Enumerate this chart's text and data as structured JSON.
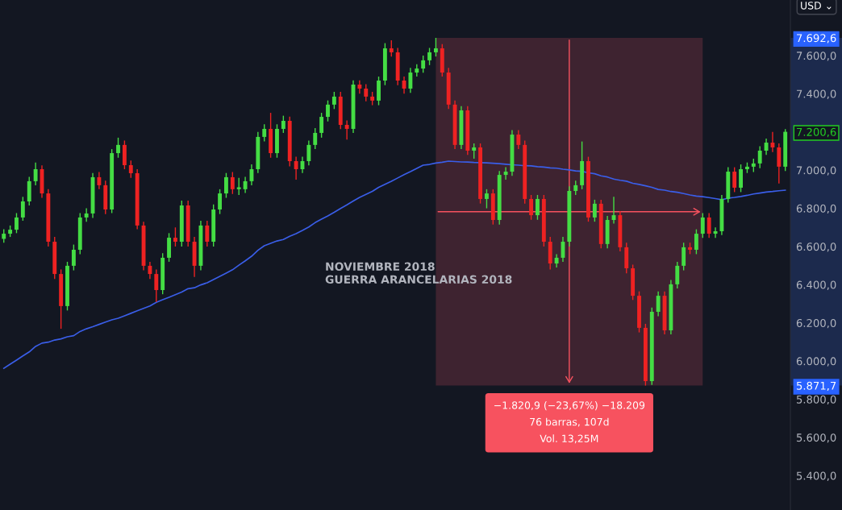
{
  "chart_data": {
    "type": "candlestick",
    "annotations": [
      "NOVIEMBRE 2018",
      "GUERRA ARANCELARIAS 2018",
      "−1.820,9 (−23,67%) −18.209",
      "76 barras, 107d",
      "Vol. 13,25M",
      "USD ⌄"
    ],
    "categories": [
      null,
      null,
      null,
      null,
      null,
      null,
      null,
      null,
      null,
      null,
      null,
      null,
      null,
      null,
      null,
      null,
      null,
      null,
      null,
      null,
      null,
      null,
      null,
      null,
      null,
      null,
      null,
      null,
      null,
      null,
      null,
      null,
      null,
      null,
      null,
      null,
      null,
      null,
      null,
      null,
      null,
      null,
      null,
      null,
      null,
      null,
      null,
      null,
      null,
      null,
      null,
      null,
      null,
      null,
      null,
      null,
      null,
      null,
      null,
      null,
      null,
      null,
      null,
      null,
      null,
      null,
      null,
      null,
      null,
      null,
      null,
      null,
      null,
      null,
      null,
      null,
      null,
      null,
      null,
      null,
      null,
      null,
      null,
      null,
      null,
      null,
      null,
      null,
      null,
      null,
      null,
      null,
      null,
      null,
      null,
      null,
      null,
      null,
      null,
      null,
      null,
      null,
      null,
      null,
      null,
      null,
      null,
      null,
      null,
      null,
      null,
      null,
      null,
      null,
      null,
      null,
      null,
      null,
      null,
      null,
      null,
      null,
      null,
      null
    ],
    "ylim": [
      5220,
      7891
    ],
    "yticks": [
      {
        "value": 5400,
        "label": "5.400,0"
      },
      {
        "value": 5600,
        "label": "5.600,0"
      },
      {
        "value": 5800,
        "label": "5.800,0"
      },
      {
        "value": 5871.7,
        "label": "5.871,7"
      },
      {
        "value": 6000,
        "label": "6.000,0"
      },
      {
        "value": 6200,
        "label": "6.200,0"
      },
      {
        "value": 6400,
        "label": "6.400,0"
      },
      {
        "value": 6600,
        "label": "6.600,0"
      },
      {
        "value": 6800,
        "label": "6.800,0"
      },
      {
        "value": 7000,
        "label": "7.000,0"
      },
      {
        "value": 7200.6,
        "label": "7.200,6"
      },
      {
        "value": 7400,
        "label": "7.400,0"
      },
      {
        "value": 7600,
        "label": "7.600,0"
      },
      {
        "value": 7692.6,
        "label": "7.692,6"
      }
    ],
    "tick_labels": "y",
    "series": [
      {
        "colors": [
          "#44dd44",
          "#44dd44",
          "#44dd44",
          "#44dd44",
          "#44dd44",
          "#44dd44",
          "#ee2222",
          "#ee2222",
          "#ee2222",
          "#ee2222",
          "#44dd44",
          "#44dd44",
          "#44dd44",
          "#44dd44",
          "#44dd44",
          "#ee2222",
          "#ee2222",
          "#44dd44",
          "#44dd44",
          "#ee2222",
          "#ee2222",
          "#ee2222",
          "#ee2222",
          "#ee2222",
          "#ee2222",
          "#44dd44",
          "#44dd44",
          "#ee2222",
          "#44dd44",
          "#ee2222",
          "#ee2222",
          "#44dd44",
          "#ee2222",
          "#44dd44",
          "#44dd44",
          "#44dd44",
          "#ee2222",
          "#44dd44",
          "#44dd44",
          "#44dd44",
          "#44dd44",
          "#44dd44",
          "#ee2222",
          "#44dd44",
          "#44dd44",
          "#ee2222",
          "#ee2222",
          "#44dd44",
          "#44dd44",
          "#44dd44",
          "#44dd44",
          "#44dd44",
          "#44dd44",
          "#ee2222",
          "#ee2222",
          "#44dd44",
          "#ee2222",
          "#ee2222",
          "#ee2222",
          "#44dd44",
          "#44dd44",
          "#ee2222",
          "#ee2222",
          "#ee2222",
          "#44dd44",
          "#44dd44",
          "#44dd44",
          "#44dd44",
          "#44dd44",
          "#ee2222",
          "#ee2222",
          "#ee2222",
          "#44dd44",
          "#ee2222",
          "#44dd44",
          "#ee2222",
          "#44dd44",
          "#ee2222",
          "#44dd44",
          "#44dd44",
          "#44dd44",
          "#ee2222",
          "#ee2222",
          "#ee2222",
          "#44dd44",
          "#ee2222",
          "#ee2222",
          "#44dd44",
          "#44dd44",
          "#44dd44",
          "#44dd44",
          "#44dd44",
          "#ee2222",
          "#44dd44",
          "#ee2222",
          "#44dd44",
          "#44dd44",
          "#ee2222",
          "#ee2222",
          "#ee2222",
          "#ee2222",
          "#ee2222",
          "#44dd44",
          "#44dd44",
          "#ee2222",
          "#44dd44",
          "#44dd44",
          "#44dd44",
          "#ee2222",
          "#44dd44",
          "#44dd44",
          "#ee2222",
          "#44dd44",
          "#44dd44",
          "#44dd44",
          "#ee2222",
          "#44dd44",
          "#44dd44",
          "#44dd44",
          "#44dd44",
          "#44dd44",
          "#ee2222",
          "#ee2222",
          "#44dd44"
        ],
        "ohlc": [
          [
            6640,
            6690,
            6620,
            6667
          ],
          [
            6667,
            6710,
            6650,
            6688
          ],
          [
            6688,
            6775,
            6670,
            6752
          ],
          [
            6752,
            6860,
            6735,
            6836
          ],
          [
            6836,
            6965,
            6815,
            6942
          ],
          [
            6942,
            7040,
            6920,
            7005
          ],
          [
            7005,
            7025,
            6855,
            6878
          ],
          [
            6878,
            6900,
            6600,
            6625
          ],
          [
            6625,
            6650,
            6430,
            6456
          ],
          [
            6456,
            6480,
            6169,
            6288
          ],
          [
            6288,
            6520,
            6265,
            6499
          ],
          [
            6499,
            6610,
            6475,
            6583
          ],
          [
            6583,
            6775,
            6560,
            6752
          ],
          [
            6752,
            6800,
            6730,
            6773
          ],
          [
            6773,
            6985,
            6750,
            6963
          ],
          [
            6963,
            6990,
            6900,
            6921
          ],
          [
            6921,
            6945,
            6770,
            6794
          ],
          [
            6794,
            7110,
            6775,
            7089
          ],
          [
            7089,
            7170,
            7065,
            7132
          ],
          [
            7132,
            7155,
            7005,
            7026
          ],
          [
            7026,
            7050,
            6960,
            6984
          ],
          [
            6984,
            7005,
            6690,
            6710
          ],
          [
            6710,
            6730,
            6475,
            6499
          ],
          [
            6499,
            6520,
            6430,
            6456
          ],
          [
            6456,
            6480,
            6310,
            6372
          ],
          [
            6372,
            6565,
            6350,
            6541
          ],
          [
            6541,
            6670,
            6520,
            6646
          ],
          [
            6646,
            6700,
            6600,
            6625
          ],
          [
            6625,
            6840,
            6600,
            6815
          ],
          [
            6815,
            6840,
            6600,
            6625
          ],
          [
            6625,
            6650,
            6440,
            6499
          ],
          [
            6499,
            6735,
            6475,
            6710
          ],
          [
            6710,
            6735,
            6600,
            6625
          ],
          [
            6625,
            6820,
            6600,
            6794
          ],
          [
            6794,
            6900,
            6770,
            6878
          ],
          [
            6878,
            6985,
            6855,
            6963
          ],
          [
            6963,
            6990,
            6875,
            6900
          ],
          [
            6900,
            6960,
            6870,
            6910
          ],
          [
            6900,
            6965,
            6880,
            6942
          ],
          [
            6942,
            7030,
            6920,
            7005
          ],
          [
            7005,
            7200,
            6985,
            7174
          ],
          [
            7174,
            7240,
            7150,
            7216
          ],
          [
            7216,
            7300,
            7065,
            7089
          ],
          [
            7089,
            7240,
            7065,
            7216
          ],
          [
            7216,
            7285,
            7195,
            7258
          ],
          [
            7258,
            7280,
            7020,
            7047
          ],
          [
            7047,
            7070,
            6950,
            7005
          ],
          [
            7005,
            7070,
            6985,
            7047
          ],
          [
            7047,
            7155,
            7025,
            7132
          ],
          [
            7132,
            7220,
            7110,
            7195
          ],
          [
            7195,
            7300,
            7170,
            7279
          ],
          [
            7279,
            7365,
            7255,
            7343
          ],
          [
            7343,
            7410,
            7320,
            7385
          ],
          [
            7385,
            7410,
            7215,
            7237
          ],
          [
            7237,
            7260,
            7160,
            7216
          ],
          [
            7216,
            7470,
            7195,
            7448
          ],
          [
            7448,
            7470,
            7400,
            7427
          ],
          [
            7427,
            7450,
            7360,
            7385
          ],
          [
            7385,
            7410,
            7340,
            7364
          ],
          [
            7364,
            7490,
            7340,
            7469
          ],
          [
            7469,
            7665,
            7445,
            7638
          ],
          [
            7638,
            7680,
            7595,
            7617
          ],
          [
            7617,
            7640,
            7445,
            7469
          ],
          [
            7469,
            7490,
            7400,
            7427
          ],
          [
            7427,
            7535,
            7405,
            7511
          ],
          [
            7511,
            7555,
            7490,
            7532
          ],
          [
            7532,
            7600,
            7510,
            7575
          ],
          [
            7575,
            7640,
            7550,
            7617
          ],
          [
            7617,
            7692.6,
            7595,
            7638
          ],
          [
            7638,
            7660,
            7490,
            7511
          ],
          [
            7511,
            7535,
            7320,
            7343
          ],
          [
            7343,
            7365,
            7110,
            7132
          ],
          [
            7132,
            7335,
            7110,
            7313
          ],
          [
            7313,
            7335,
            7080,
            7102
          ],
          [
            7102,
            7140,
            7060,
            7119
          ],
          [
            7119,
            7140,
            6825,
            6849
          ],
          [
            6849,
            6900,
            6800,
            6878
          ],
          [
            6878,
            6900,
            6715,
            6739
          ],
          [
            6739,
            6995,
            6715,
            6975
          ],
          [
            6975,
            7015,
            6950,
            6992
          ],
          [
            6992,
            7210,
            6970,
            7186
          ],
          [
            7186,
            7210,
            7110,
            7132
          ],
          [
            7132,
            7155,
            6825,
            6849
          ],
          [
            6849,
            6870,
            6740,
            6764
          ],
          [
            6764,
            6870,
            6740,
            6849
          ],
          [
            6849,
            6870,
            6600,
            6625
          ],
          [
            6625,
            6650,
            6480,
            6511
          ],
          [
            6511,
            6560,
            6490,
            6541
          ],
          [
            6541,
            6650,
            6520,
            6625
          ],
          [
            6625,
            6915,
            6600,
            6891
          ],
          [
            6891,
            6945,
            6870,
            6921
          ],
          [
            6921,
            7150,
            6900,
            7047
          ],
          [
            7047,
            7070,
            6730,
            6752
          ],
          [
            6752,
            6845,
            6730,
            6824
          ],
          [
            6824,
            6845,
            6590,
            6613
          ],
          [
            6613,
            6760,
            6590,
            6739
          ],
          [
            6739,
            6860,
            6720,
            6764
          ],
          [
            6764,
            6785,
            6575,
            6596
          ],
          [
            6596,
            6620,
            6460,
            6486
          ],
          [
            6486,
            6505,
            6320,
            6342
          ],
          [
            6342,
            6365,
            6150,
            6174
          ],
          [
            6174,
            6195,
            5871.7,
            5895
          ],
          [
            5895,
            6280,
            5875,
            6258
          ],
          [
            6258,
            6365,
            6235,
            6342
          ],
          [
            6342,
            6365,
            6140,
            6161
          ],
          [
            6161,
            6425,
            6140,
            6402
          ],
          [
            6402,
            6520,
            6380,
            6499
          ],
          [
            6499,
            6620,
            6475,
            6596
          ],
          [
            6596,
            6620,
            6560,
            6583
          ],
          [
            6583,
            6690,
            6560,
            6667
          ],
          [
            6667,
            6775,
            6645,
            6752
          ],
          [
            6752,
            6775,
            6645,
            6667
          ],
          [
            6667,
            6700,
            6645,
            6680
          ],
          [
            6680,
            6870,
            6660,
            6849
          ],
          [
            6849,
            7015,
            6830,
            6992
          ],
          [
            6992,
            7015,
            6885,
            6908
          ],
          [
            6908,
            7030,
            6885,
            7005
          ],
          [
            7005,
            7040,
            6985,
            7018
          ],
          [
            7018,
            7060,
            6990,
            7035
          ],
          [
            7035,
            7125,
            7010,
            7102
          ],
          [
            7102,
            7165,
            7080,
            7144
          ],
          [
            7144,
            7200,
            7095,
            7119
          ],
          [
            7119,
            7140,
            6930,
            7018
          ],
          [
            7018,
            7215,
            6995,
            7200.6
          ]
        ]
      },
      {
        "type": "line",
        "color": "#3a5ee8",
        "values": [
          5962,
          5984,
          6005,
          6027,
          6048,
          6077,
          6094,
          6099,
          6110,
          6116,
          6127,
          6133,
          6155,
          6169,
          6180,
          6192,
          6204,
          6216,
          6224,
          6237,
          6250,
          6263,
          6276,
          6289,
          6308,
          6321,
          6334,
          6348,
          6361,
          6379,
          6384,
          6399,
          6410,
          6427,
          6444,
          6461,
          6478,
          6502,
          6525,
          6549,
          6580,
          6604,
          6617,
          6629,
          6637,
          6654,
          6667,
          6684,
          6702,
          6725,
          6743,
          6760,
          6779,
          6799,
          6818,
          6838,
          6857,
          6873,
          6889,
          6910,
          6926,
          6942,
          6959,
          6976,
          6992,
          7009,
          7026,
          7030,
          7037,
          7041,
          7047,
          7045,
          7043,
          7042,
          7040,
          7039,
          7038,
          7036,
          7034,
          7031,
          7028,
          7026,
          7023,
          7022,
          7018,
          7016,
          7012,
          7010,
          7005,
          7001,
          6996,
          6994,
          6986,
          6981,
          6970,
          6964,
          6953,
          6947,
          6942,
          6931,
          6925,
          6918,
          6910,
          6899,
          6895,
          6888,
          6884,
          6877,
          6870,
          6864,
          6861,
          6856,
          6851,
          6845,
          6853,
          6857,
          6862,
          6868,
          6875,
          6880,
          6885,
          6888,
          6892,
          6895
        ]
      }
    ]
  }
}
